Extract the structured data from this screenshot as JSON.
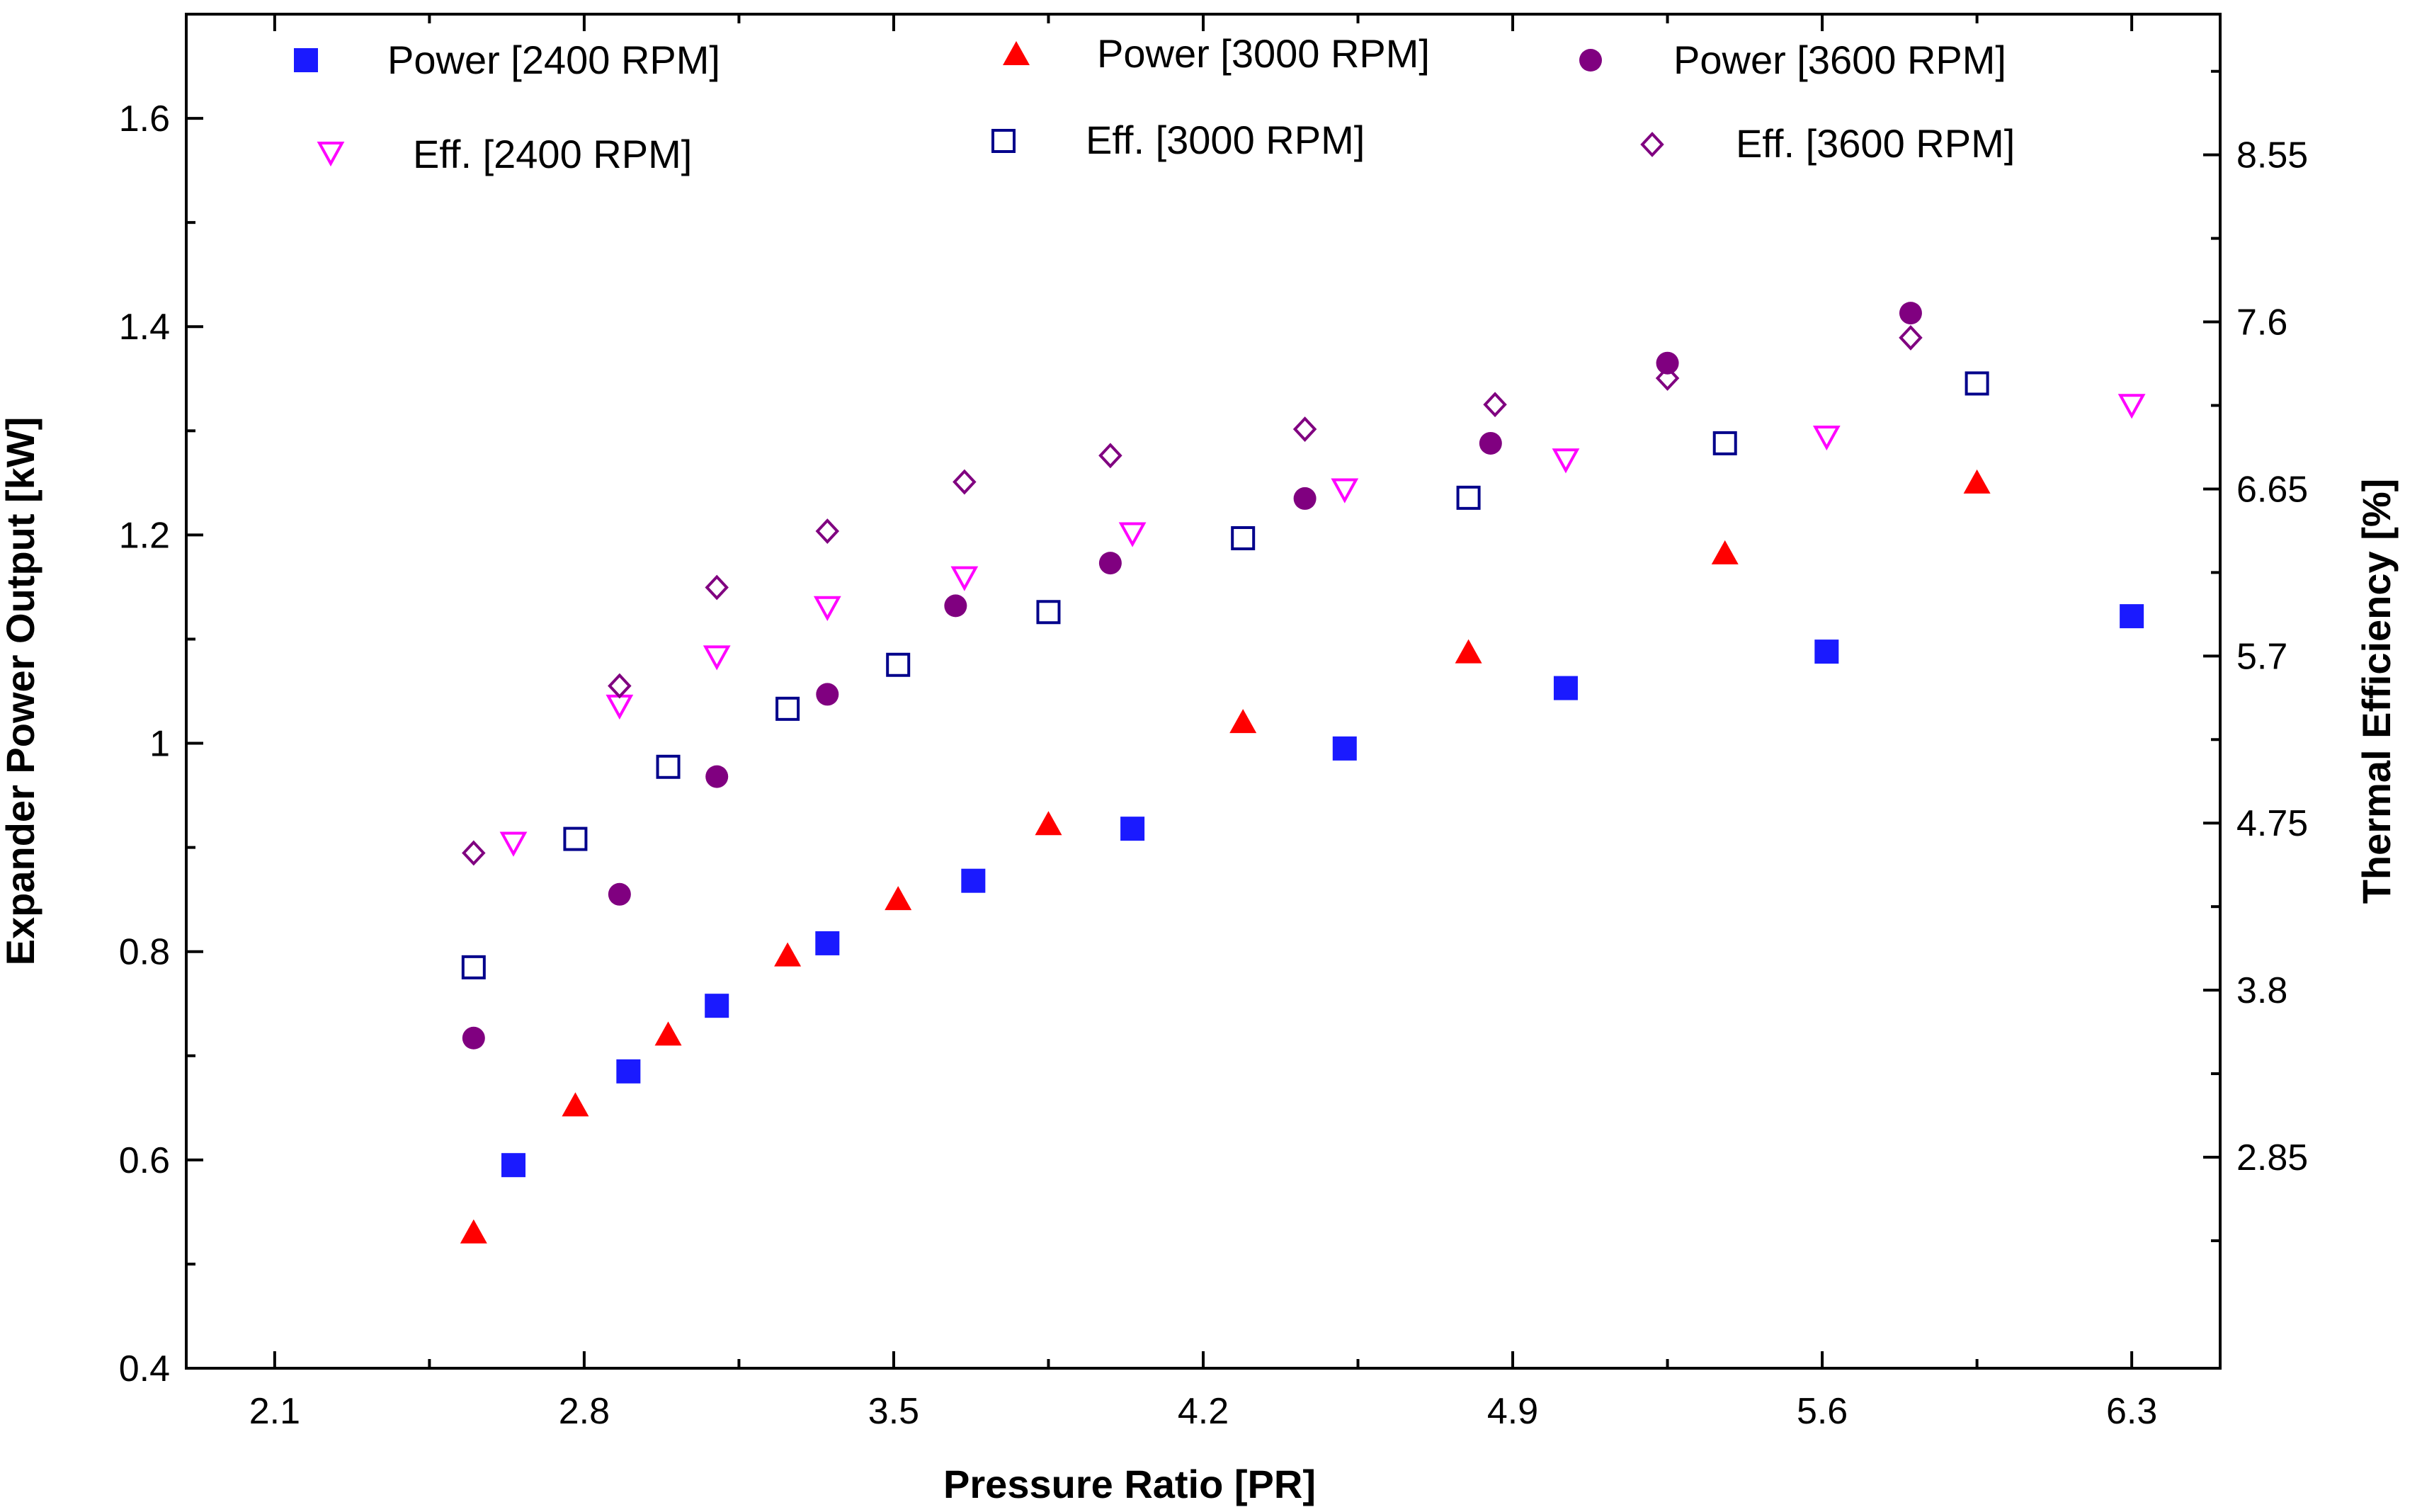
{
  "chart_data": {
    "type": "scatter",
    "xlabel": "Pressure Ratio [PR]",
    "ylabel": "Expander Power Output [kW]",
    "y2label": "Thermal Efficiency [%]",
    "xlim": [
      1.9,
      6.5
    ],
    "ylim": [
      0.4,
      1.7
    ],
    "y2lim": [
      1.65,
      9.35
    ],
    "xticks": [
      "2.1",
      "2.8",
      "3.5",
      "4.2",
      "4.9",
      "5.6",
      "6.3"
    ],
    "yticks": [
      "0.4",
      "0.6",
      "0.8",
      "1",
      "1.2",
      "1.4",
      "1.6"
    ],
    "y2ticks": [
      "2.85",
      "3.8",
      "4.75",
      "5.7",
      "6.65",
      "7.6",
      "8.55"
    ],
    "series": [
      {
        "name": "Power [2400 RPM]",
        "axis": "left",
        "marker": "square-filled",
        "color": "#1a1aff",
        "x": [
          2.64,
          2.9,
          3.1,
          3.35,
          3.68,
          4.04,
          4.52,
          5.02,
          5.61,
          6.3
        ],
        "y": [
          0.595,
          0.685,
          0.748,
          0.808,
          0.868,
          0.918,
          0.995,
          1.053,
          1.088,
          1.122
        ]
      },
      {
        "name": "Power [3000 RPM]",
        "axis": "left",
        "marker": "triangle-filled",
        "color": "#ff0000",
        "x": [
          2.55,
          2.78,
          2.99,
          3.26,
          3.51,
          3.85,
          4.29,
          4.8,
          5.38,
          5.95
        ],
        "y": [
          0.53,
          0.652,
          0.72,
          0.796,
          0.85,
          0.922,
          1.02,
          1.087,
          1.182,
          1.25
        ]
      },
      {
        "name": "Power [3600 RPM]",
        "axis": "left",
        "marker": "circle-filled",
        "color": "#800080",
        "x": [
          2.55,
          2.88,
          3.1,
          3.35,
          3.64,
          3.99,
          4.43,
          4.85,
          5.25,
          5.8
        ],
        "y": [
          0.717,
          0.855,
          0.968,
          1.047,
          1.132,
          1.173,
          1.235,
          1.288,
          1.365,
          1.413
        ]
      },
      {
        "name": "Eff. [2400 RPM]",
        "axis": "right",
        "marker": "triangle-down-open",
        "color": "#ff00ff",
        "x": [
          2.64,
          2.88,
          3.1,
          3.35,
          3.66,
          4.04,
          4.52,
          5.02,
          5.61,
          6.3
        ],
        "y": [
          4.64,
          5.42,
          5.7,
          5.98,
          6.15,
          6.4,
          6.65,
          6.82,
          6.95,
          7.13
        ]
      },
      {
        "name": "Eff. [3000 RPM]",
        "axis": "right",
        "marker": "square-open",
        "color": "#00008b",
        "x": [
          2.55,
          2.78,
          2.99,
          3.26,
          3.51,
          3.85,
          4.29,
          4.8,
          5.38,
          5.95
        ],
        "y": [
          3.93,
          4.66,
          5.07,
          5.4,
          5.65,
          5.95,
          6.37,
          6.6,
          6.91,
          7.25
        ]
      },
      {
        "name": "Eff. [3600 RPM]",
        "axis": "right",
        "marker": "diamond-open",
        "color": "#800080",
        "x": [
          2.55,
          2.88,
          3.1,
          3.35,
          3.66,
          3.99,
          4.43,
          4.86,
          5.25,
          5.8
        ],
        "y": [
          4.58,
          5.53,
          6.09,
          6.41,
          6.69,
          6.84,
          6.99,
          7.13,
          7.28,
          7.51
        ]
      }
    ]
  }
}
